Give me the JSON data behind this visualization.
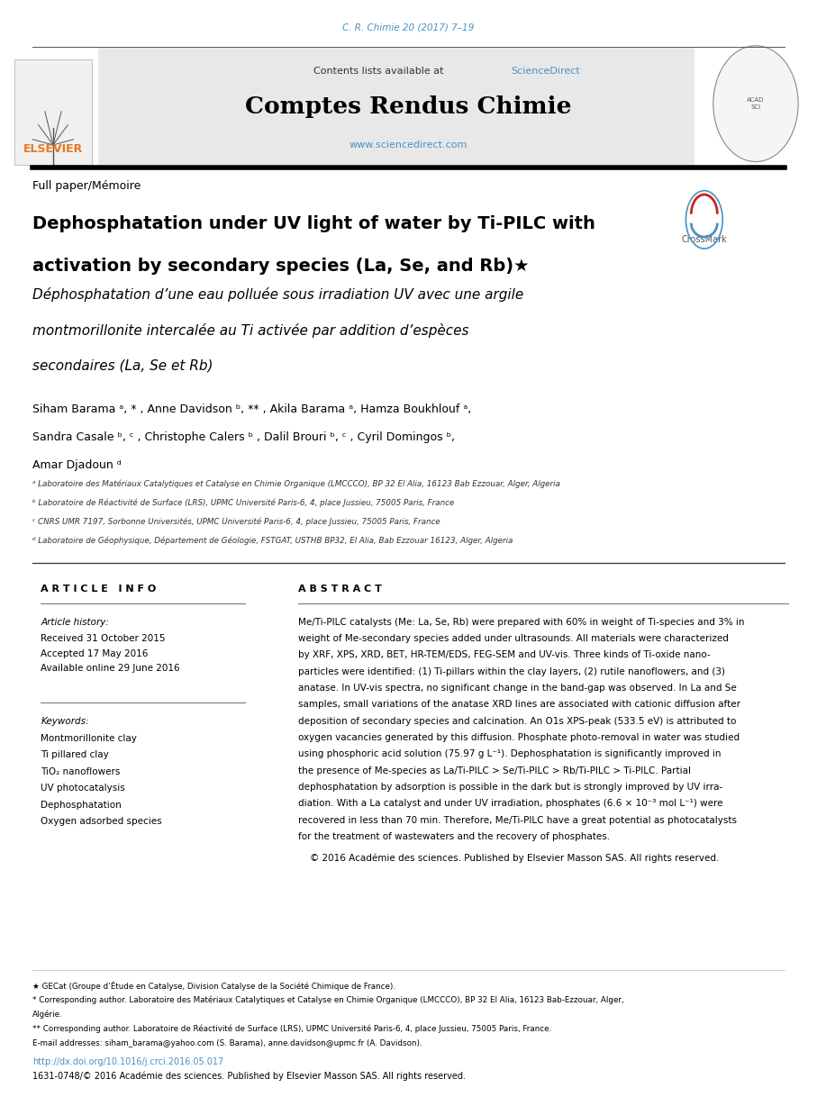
{
  "page_width": 9.07,
  "page_height": 12.38,
  "bg_color": "#ffffff",
  "journal_ref": "C. R. Chimie 20 (2017) 7–19",
  "journal_ref_color": "#4a90c4",
  "journal_name": "Comptes Rendus Chimie",
  "header_bg": "#e8e8e8",
  "contents_text": "Contents lists available at ",
  "sciencedirect_text": "ScienceDirect",
  "sciencedirect_color": "#4a90c4",
  "website_text": "www.sciencedirect.com",
  "website_color": "#4a90c4",
  "paper_type": "Full paper/Mémoire",
  "title_en_line1": "Dephosphatation under UV light of water by Ti-PILC with",
  "title_en_line2": "activation by secondary species (La, Se, and Rb)★",
  "title_fr_line1": "Déphosphatation d’une eau polluée sous irradiation UV avec une argile",
  "title_fr_line2": "montmorillonite intercalée au Ti activée par addition d’espèces",
  "title_fr_line3": "secondaires (La, Se et Rb)",
  "authors_line1": "Siham Barama ᵃ, * , Anne Davidson ᵇ, ** , Akila Barama ᵃ, Hamza Boukhlouf ᵃ,",
  "authors_line2": "Sandra Casale ᵇ, ᶜ , Christophe Calers ᵇ , Dalil Brouri ᵇ, ᶜ , Cyril Domingos ᵇ,",
  "authors_line3": "Amar Djadoun ᵈ",
  "affil_a": "ᵃ Laboratoire des Matériaux Catalytiques et Catalyse en Chimie Organique (LMCCCO), BP 32 El Alia, 16123 Bab Ezzouar, Alger, Algeria",
  "affil_b": "ᵇ Laboratoire de Réactivité de Surface (LRS), UPMC Université Paris-6, 4, place Jussieu, 75005 Paris, France",
  "affil_c": "ᶜ CNRS UMR 7197, Sorbonne Universités, UPMC Université Paris-6, 4, place Jussieu, 75005 Paris, France",
  "affil_d": "ᵈ Laboratoire de Géophysique, Département de Géologie, FSTGAT, USTHB BP32, El Alia, Bab Ezzouar 16123, Alger, Algeria",
  "article_info_header": "A R T I C L E   I N F O",
  "abstract_header": "A B S T R A C T",
  "article_history_label": "Article history:",
  "received": "Received 31 October 2015",
  "accepted": "Accepted 17 May 2016",
  "available": "Available online 29 June 2016",
  "keywords_label": "Keywords:",
  "keywords": [
    "Montmorillonite clay",
    "Ti pillared clay",
    "TiO₂ nanoflowers",
    "UV photocatalysis",
    "Dephosphatation",
    "Oxygen adsorbed species"
  ],
  "abstract_text": "Me/Ti-PILC catalysts (Me: La, Se, Rb) were prepared with 60% in weight of Ti-species and 3% in\nweight of Me-secondary species added under ultrasounds. All materials were characterized\nby XRF, XPS, XRD, BET, HR-TEM/EDS, FEG-SEM and UV-vis. Three kinds of Ti-oxide nano-\nparticles were identified: (1) Ti-pillars within the clay layers, (2) rutile nanoflowers, and (3)\nanatase. In UV-vis spectra, no significant change in the band-gap was observed. In La and Se\nsamples, small variations of the anatase XRD lines are associated with cationic diffusion after\ndeposition of secondary species and calcination. An O1s XPS-peak (533.5 eV) is attributed to\noxygen vacancies generated by this diffusion. Phosphate photo-removal in water was studied\nusing phosphoric acid solution (75.97 g L⁻¹). Dephosphatation is significantly improved in\nthe presence of Me-species as La/Ti-PILC > Se/Ti-PILC > Rb/Ti-PILC > Ti-PILC. Partial\ndephosphatation by adsorption is possible in the dark but is strongly improved by UV irra-\ndiation. With a La catalyst and under UV irradiation, phosphates (6.6 × 10⁻³ mol L⁻¹) were\nrecovered in less than 70 min. Therefore, Me/Ti-PILC have a great potential as photocatalysts\nfor the treatment of wastewaters and the recovery of phosphates.",
  "copyright_text": "    © 2016 Académie des sciences. Published by Elsevier Masson SAS. All rights reserved.",
  "footnote1": "★ GECat (Groupe d’Étude en Catalyse, Division Catalyse de la Société Chimique de France).",
  "footnote2a": "* Corresponding author. Laboratoire des Matériaux Catalytiques et Catalyse en Chimie Organique (LMCCCO), BP 32 El Alia, 16123 Bab-Ezzouar, Alger,",
  "footnote2b": "Algérie.",
  "footnote3": "** Corresponding author. Laboratoire de Réactivité de Surface (LRS), UPMC Université Paris-6, 4, place Jussieu, 75005 Paris, France.",
  "footnote4": "E-mail addresses: siham_barama@yahoo.com (S. Barama), anne.davidson@upmc.fr (A. Davidson).",
  "doi_text": "http://dx.doi.org/10.1016/j.crci.2016.05.017",
  "doi_color": "#4a90c4",
  "issn_text": "1631-0748/© 2016 Académie des sciences. Published by Elsevier Masson SAS. All rights reserved.",
  "text_color": "#000000",
  "gray_text": "#555555"
}
